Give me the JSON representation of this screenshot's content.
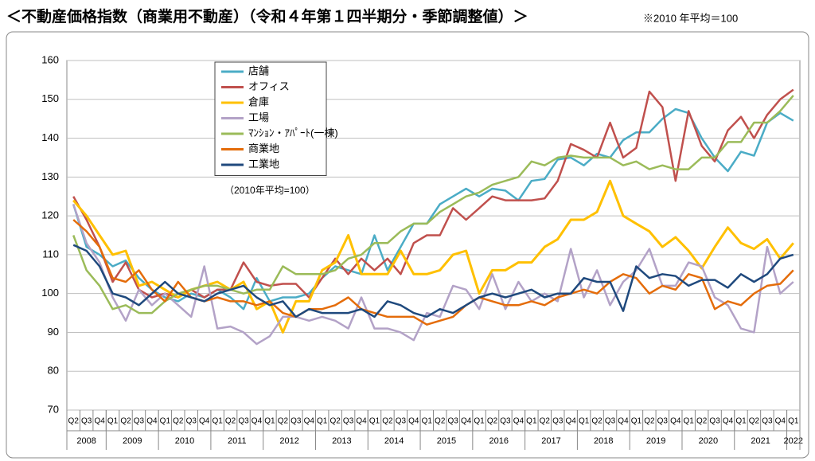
{
  "chart_data": {
    "type": "line",
    "title": "＜不動産価格指数（商業用不動産）（令和４年第１四半期分・季節調整値）＞",
    "subtitle": "※2010 年平均＝100",
    "annotation": "（2010年平均=100）",
    "categories": [
      "Q2",
      "Q3",
      "Q4",
      "Q1",
      "Q2",
      "Q3",
      "Q4",
      "Q1",
      "Q2",
      "Q3",
      "Q4",
      "Q1",
      "Q2",
      "Q3",
      "Q4",
      "Q1",
      "Q2",
      "Q3",
      "Q4",
      "Q1",
      "Q2",
      "Q3",
      "Q4",
      "Q1",
      "Q2",
      "Q3",
      "Q4",
      "Q1",
      "Q2",
      "Q3",
      "Q4",
      "Q1",
      "Q2",
      "Q3",
      "Q4",
      "Q1",
      "Q2",
      "Q3",
      "Q4",
      "Q1",
      "Q2",
      "Q3",
      "Q4",
      "Q1",
      "Q2",
      "Q3",
      "Q4",
      "Q1",
      "Q2",
      "Q3",
      "Q4",
      "Q1",
      "Q2",
      "Q3",
      "Q4",
      "Q1"
    ],
    "years": [
      "2008",
      "2009",
      "2010",
      "2011",
      "2012",
      "2013",
      "2014",
      "2015",
      "2016",
      "2017",
      "2018",
      "2019",
      "2020",
      "2021",
      "2022"
    ],
    "ylim": [
      70,
      160
    ],
    "yticks": [
      70,
      80,
      90,
      100,
      110,
      120,
      130,
      140,
      150,
      160
    ],
    "grid": true,
    "series": [
      {
        "name": "店舗",
        "color": "#4bacc6",
        "values": [
          123,
          112,
          110,
          107,
          108.5,
          104,
          101,
          99,
          98,
          100,
          99,
          101,
          99,
          96,
          104,
          98,
          99,
          99,
          100,
          104,
          107,
          106,
          105,
          115,
          106,
          112,
          118,
          118,
          123,
          125,
          127,
          125,
          127,
          126.5,
          124,
          129,
          129.5,
          134.5,
          135,
          133,
          136,
          135,
          139.5,
          141.5,
          141.5,
          145,
          147.5,
          146.5,
          140,
          135,
          131.5,
          136.5,
          135.5,
          144,
          146.5,
          144.5
        ]
      },
      {
        "name": "オフィス",
        "color": "#c0504d",
        "values": [
          125,
          119,
          112,
          103,
          108,
          101,
          99,
          100,
          99,
          101,
          99,
          101,
          101,
          108,
          103,
          102,
          102.5,
          102.5,
          99,
          104,
          109,
          105,
          109,
          106,
          109,
          105,
          113,
          115,
          115,
          122,
          119,
          122,
          125,
          124,
          124,
          124,
          124.5,
          129,
          138.5,
          137,
          135,
          144,
          135,
          137.5,
          152,
          148,
          129,
          147,
          138,
          134,
          142,
          145.5,
          140,
          146,
          150,
          152.5
        ]
      },
      {
        "name": "倉庫",
        "color": "#ffc000",
        "values": [
          124,
          120,
          115,
          110,
          111,
          102,
          103,
          101,
          99,
          101,
          102,
          103,
          101,
          103,
          96,
          98,
          90,
          98,
          98,
          106,
          108,
          115,
          105,
          105,
          105,
          111,
          105,
          105,
          106,
          110,
          111,
          100,
          106,
          106,
          108,
          108,
          112,
          114,
          119,
          119,
          121,
          129,
          120,
          118,
          116,
          112,
          114.5,
          111,
          106.5,
          112,
          117,
          113,
          111.5,
          114,
          109,
          113
        ]
      },
      {
        "name": "工場",
        "color": "#b3a2c7",
        "values": [
          123,
          113,
          108,
          99,
          93,
          101,
          97,
          100,
          97,
          94,
          107,
          91,
          91.5,
          90,
          87,
          89,
          94,
          94,
          93,
          94,
          93,
          91,
          99,
          91,
          91,
          90,
          88,
          95,
          94,
          102,
          101,
          96,
          105,
          96,
          103,
          98,
          100,
          98,
          111.5,
          99,
          106,
          97,
          103,
          106,
          111.5,
          102,
          102,
          108,
          107,
          99,
          97,
          91,
          90,
          112,
          100,
          103
        ]
      },
      {
        "name": "ﾏﾝｼｮﾝ・ｱﾊﾟｰﾄ(一棟)",
        "color": "#9bbb59",
        "values": [
          115,
          106,
          102,
          96,
          97,
          95,
          95,
          98,
          100,
          101,
          102,
          102,
          101,
          100,
          101,
          101,
          107,
          105,
          105,
          105,
          106,
          109,
          110,
          113,
          113,
          116,
          118,
          118,
          121,
          123,
          125,
          126,
          128,
          129,
          130,
          134,
          133,
          135,
          135.5,
          135,
          135,
          135,
          133,
          134,
          132,
          133,
          132,
          132,
          135,
          135,
          139,
          139,
          144,
          144,
          147,
          151
        ]
      },
      {
        "name": "商業地",
        "color": "#e46c0a",
        "values": [
          119,
          116,
          112,
          104,
          103,
          106,
          101,
          98,
          103,
          99,
          98,
          99,
          98,
          98,
          97,
          98,
          95,
          94,
          96,
          96,
          97,
          99,
          96,
          95,
          94,
          94,
          94,
          92,
          93,
          94,
          97,
          99,
          98,
          97,
          97,
          98,
          97,
          99,
          100,
          101,
          100,
          103,
          105,
          104,
          100,
          102,
          101,
          105,
          104,
          96,
          98,
          97,
          100,
          102,
          102.5,
          106
        ]
      },
      {
        "name": "工業地",
        "color": "#1f497d",
        "values": [
          112.5,
          111,
          107,
          100,
          99,
          97,
          100,
          103,
          100,
          99,
          98,
          100,
          101,
          102,
          99,
          97,
          98,
          94,
          96,
          95,
          95,
          95,
          96,
          94,
          98,
          97,
          95,
          94,
          96,
          95,
          97,
          99,
          100,
          99,
          100,
          101,
          99,
          100,
          100,
          104,
          103,
          103,
          95.5,
          107,
          104,
          105,
          104.5,
          102,
          103.5,
          103.5,
          101.5,
          105,
          103,
          105,
          109,
          110
        ]
      }
    ]
  }
}
